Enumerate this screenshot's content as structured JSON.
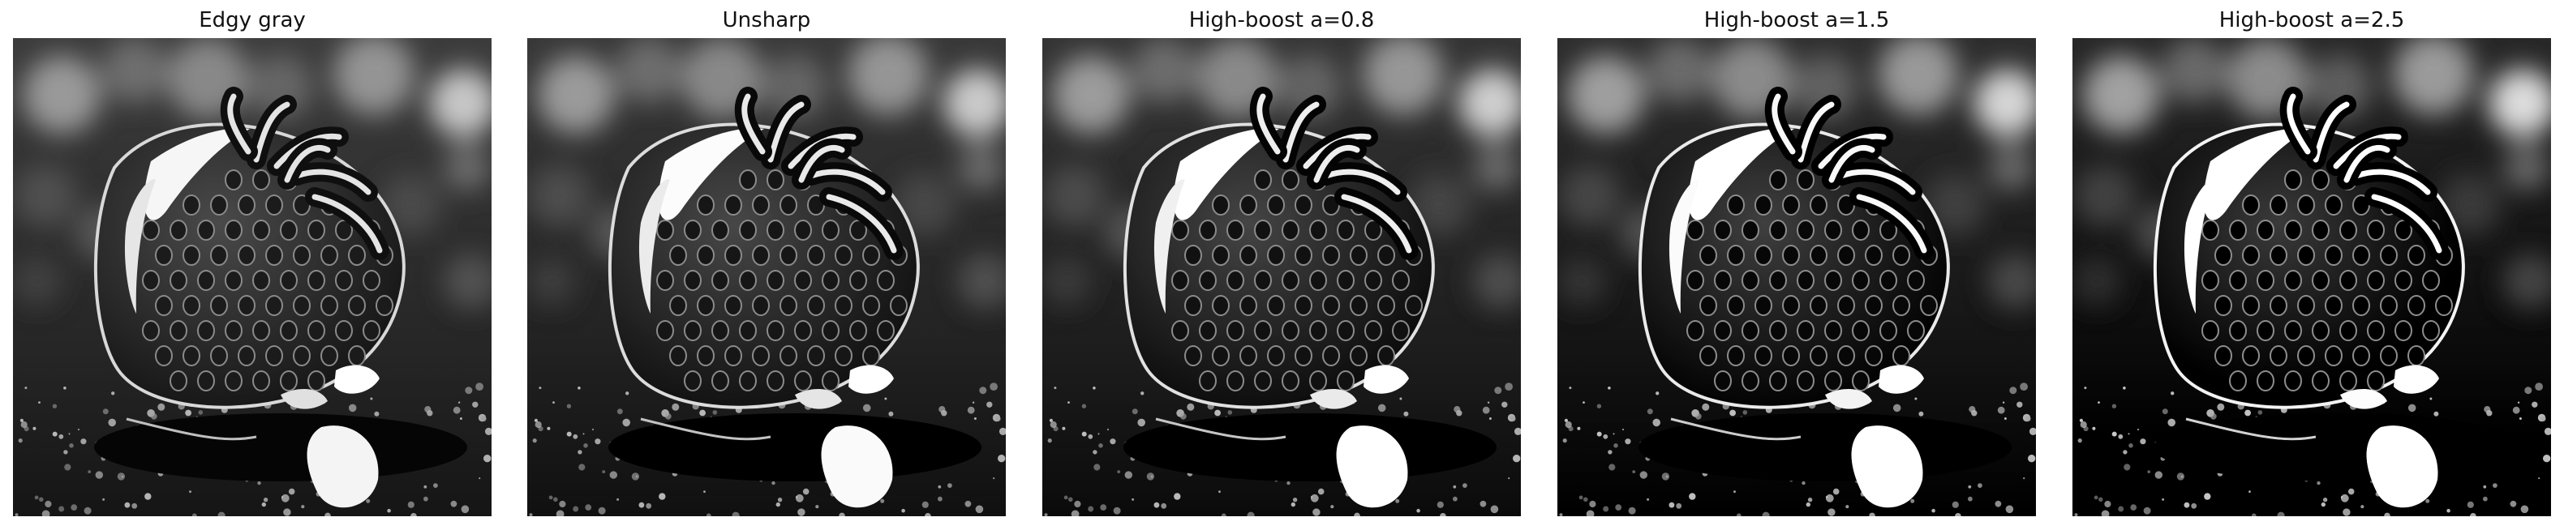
{
  "figure": {
    "panels": [
      {
        "id": "edgy-gray",
        "title": "Edgy gray",
        "contrast": 1.0
      },
      {
        "id": "unsharp",
        "title": "Unsharp",
        "contrast": 1.05
      },
      {
        "id": "high-boost-0-8",
        "title": "High-boost a=0.8",
        "contrast": 1.1
      },
      {
        "id": "high-boost-1-5",
        "title": "High-boost a=1.5",
        "contrast": 1.2
      },
      {
        "id": "high-boost-2-5",
        "title": "High-boost a=2.5",
        "contrast": 1.3
      }
    ]
  }
}
